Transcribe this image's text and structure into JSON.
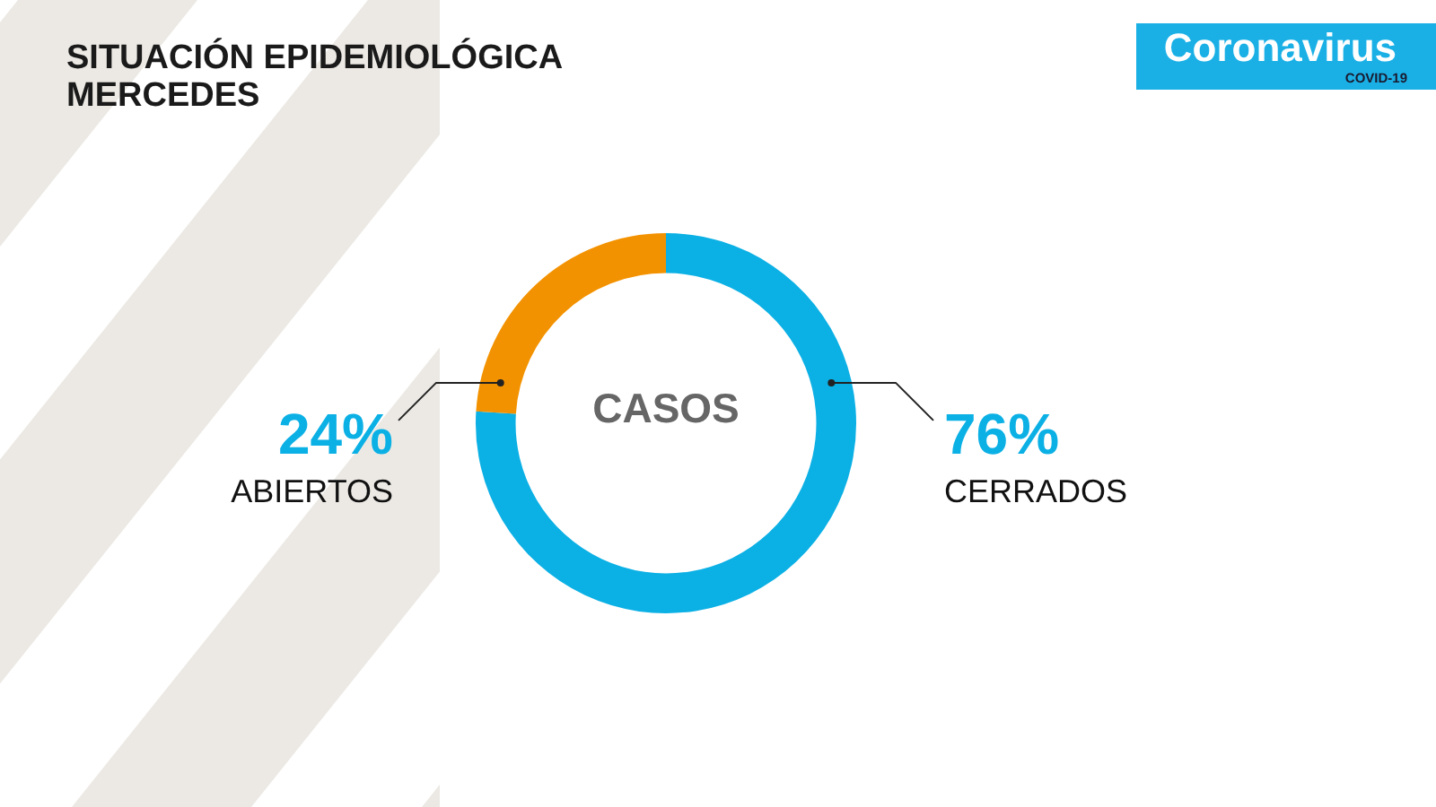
{
  "chart_data": {
    "type": "donut",
    "title": "SITUACIÓN EPIDEMIOLÓGICA MERCEDES",
    "categories": [
      "CERRADOS",
      "ABIERTOS"
    ],
    "values": [
      76,
      24
    ],
    "colors": [
      "#0bb0e5",
      "#f39200"
    ],
    "value_labels": [
      "76%",
      "24%"
    ],
    "annotations": [
      "CASOS",
      "Coronavirus",
      "COVID-19"
    ],
    "legend": false
  }
}
